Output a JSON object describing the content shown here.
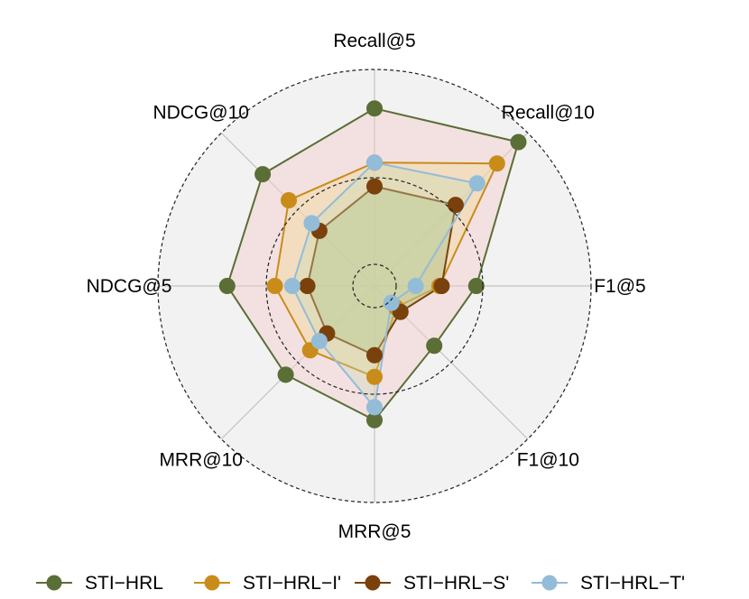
{
  "chart_data": {
    "type": "radar",
    "axes": [
      "Recall@5",
      "Recall@10",
      "F1@5",
      "F1@10",
      "MRR@5",
      "MRR@10",
      "NDCG@5",
      "NDCG@10"
    ],
    "rlim": [
      0,
      1
    ],
    "ring_levels": [
      0.1,
      0.5,
      1.0
    ],
    "grid": true,
    "legend_position": "bottom",
    "series": [
      {
        "name": "STI−HRL",
        "color": "#5a6e35",
        "fill": "#f3cccc",
        "fill_opacity": 0.45,
        "values": [
          0.82,
          0.94,
          0.47,
          0.39,
          0.62,
          0.58,
          0.68,
          0.73
        ]
      },
      {
        "name": "STI−HRL−I'",
        "color": "#c98c1a",
        "fill": "#f2d99a",
        "fill_opacity": 0.45,
        "values": [
          0.57,
          0.8,
          0.3,
          0.14,
          0.42,
          0.42,
          0.46,
          0.56
        ]
      },
      {
        "name": "STI−HRL−S'",
        "color": "#7a410c",
        "fill": "#b8c48a",
        "fill_opacity": 0.55,
        "values": [
          0.46,
          0.53,
          0.31,
          0.17,
          0.32,
          0.31,
          0.31,
          0.36
        ]
      },
      {
        "name": "STI−HRL−T'",
        "color": "#93bcd8",
        "fill": "#c9dbb3",
        "fill_opacity": 0.35,
        "values": [
          0.57,
          0.67,
          0.19,
          0.11,
          0.56,
          0.36,
          0.38,
          0.41
        ]
      }
    ]
  }
}
